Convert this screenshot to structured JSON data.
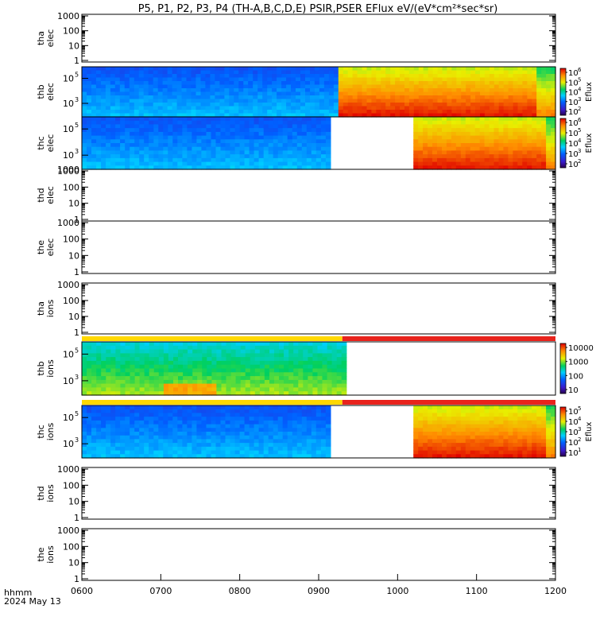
{
  "title": "P5, P1, P2, P3, P4 (TH-A,B,C,D,E) PSIR,PSER EFlux eV/(eV*cm²*sec*sr)",
  "footer": {
    "line1": "hhmm",
    "line2": "2024 May 13"
  },
  "chart_data": {
    "type": "heatmap",
    "x_ticks": [
      "0600",
      "0700",
      "0800",
      "0900",
      "1000",
      "1100",
      "1200"
    ],
    "x_range": [
      "06:00",
      "12:00"
    ],
    "panels": [
      {
        "id": "tha-elec",
        "label": [
          "tha",
          "elec"
        ],
        "yticks": [
          "1000",
          "100",
          "10",
          "1"
        ],
        "has_data": false
      },
      {
        "id": "thb-elec",
        "label": [
          "thb",
          "elec"
        ],
        "yticks_base": [
          "10",
          "10"
        ],
        "yticks_exp": [
          "5",
          "3"
        ],
        "has_data": true,
        "colorbar": {
          "title": "Eflux",
          "labels": [
            "10",
            "10",
            "10",
            "10",
            "10"
          ],
          "exps": [
            "6",
            "5",
            "4",
            "3",
            "2"
          ]
        }
      },
      {
        "id": "thc-elec",
        "label": [
          "thc",
          "elec"
        ],
        "yticks_base": [
          "10",
          "10"
        ],
        "yticks_exp": [
          "5",
          "3"
        ],
        "bottom_tick": "1000",
        "has_data": true,
        "colorbar": {
          "title": "Eflux",
          "labels": [
            "10",
            "10",
            "10",
            "10",
            "10"
          ],
          "exps": [
            "6",
            "5",
            "4",
            "3",
            "2"
          ]
        }
      },
      {
        "id": "thd-elec",
        "label": [
          "thd",
          "elec"
        ],
        "yticks": [
          "1000",
          "100",
          "10",
          "1"
        ],
        "has_data": false
      },
      {
        "id": "the-elec",
        "label": [
          "the",
          "elec"
        ],
        "yticks": [
          "1000",
          "100",
          "10",
          "1"
        ],
        "has_data": false
      },
      {
        "id": "tha-ions",
        "label": [
          "tha",
          "ions"
        ],
        "yticks": [
          "1000",
          "100",
          "10",
          "1"
        ],
        "has_data": false
      },
      {
        "id": "thb-ions",
        "label": [
          "thb",
          "ions"
        ],
        "yticks_base": [
          "10",
          "10"
        ],
        "yticks_exp": [
          "5",
          "3"
        ],
        "has_data": true,
        "colorbar": {
          "title": "",
          "labels": [
            "10000",
            "1000",
            "100",
            "10"
          ]
        }
      },
      {
        "id": "thc-ions",
        "label": [
          "thc",
          "ions"
        ],
        "yticks_base": [
          "10",
          "10"
        ],
        "yticks_exp": [
          "5",
          "3"
        ],
        "has_data": true,
        "colorbar": {
          "title": "Eflux",
          "labels": [
            "10",
            "10",
            "10",
            "10",
            "10"
          ],
          "exps": [
            "5",
            "4",
            "3",
            "2",
            "1"
          ]
        }
      },
      {
        "id": "thd-ions",
        "label": [
          "thd",
          "ions"
        ],
        "yticks": [
          "1000",
          "100",
          "10",
          "1"
        ],
        "has_data": false
      },
      {
        "id": "the-ions",
        "label": [
          "the",
          "ions"
        ],
        "yticks": [
          "1000",
          "100",
          "10",
          "1"
        ],
        "has_data": false
      }
    ],
    "mode_bars": [
      {
        "panel": "thb-ions",
        "segments": [
          {
            "start": "06:00",
            "end": "09:18",
            "color": "#ffd800"
          },
          {
            "start": "09:18",
            "end": "12:00",
            "color": "#e8231c"
          }
        ]
      },
      {
        "panel": "thc-ions",
        "segments": [
          {
            "start": "06:00",
            "end": "09:18",
            "color": "#ffd800"
          },
          {
            "start": "09:18",
            "end": "12:00",
            "color": "#e8231c"
          }
        ]
      }
    ],
    "data_segments": {
      "thb-elec": [
        {
          "start": "06:00",
          "end": "09:15",
          "level": "low"
        },
        {
          "start": "09:15",
          "end": "12:00",
          "level": "high"
        }
      ],
      "thc-elec": [
        {
          "start": "06:00",
          "end": "09:09",
          "level": "low"
        },
        {
          "start": "10:12",
          "end": "12:00",
          "level": "high"
        }
      ],
      "thb-ions": [
        {
          "start": "06:00",
          "end": "09:21",
          "level": "mid"
        }
      ],
      "thc-ions": [
        {
          "start": "06:00",
          "end": "09:09",
          "level": "low"
        },
        {
          "start": "10:12",
          "end": "12:00",
          "level": "high"
        }
      ]
    }
  }
}
